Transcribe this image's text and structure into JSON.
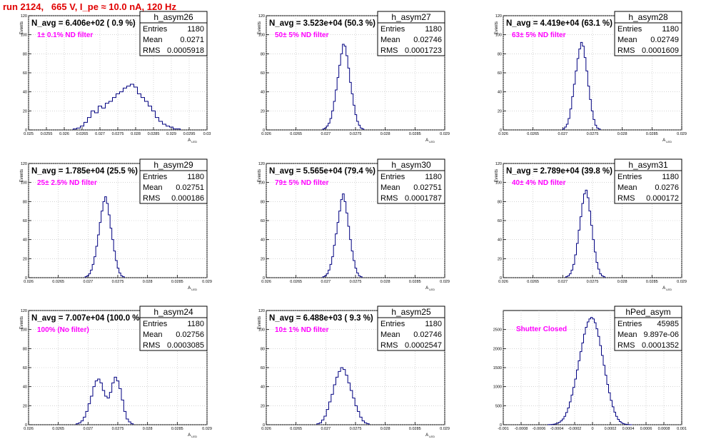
{
  "run_title": "run 2124,   665 V, I_pe ≈ 10.0 nA, 120 Hz",
  "stat_labels": {
    "entries": "Entries",
    "mean": "Mean",
    "rms": "RMS"
  },
  "chart_data": [
    {
      "type": "histogram",
      "name": "h_asym26",
      "navg": "N_avg = 6.406e+02 ( 0.9 %)",
      "filter": "1± 0.1% ND filter",
      "entries": "1180",
      "mean": "0.0271",
      "rms": "0.0005918",
      "xlabel": "A",
      "xlabel_sub": "LED",
      "ylabel": "Events",
      "xlim": [
        0.025,
        0.03
      ],
      "ylim": [
        0,
        120
      ],
      "xticks": [
        "0.025",
        "0.0255",
        "0.026",
        "0.0265",
        "0.027",
        "0.0275",
        "0.028",
        "0.0285",
        "0.029",
        "0.0295",
        "0.03"
      ],
      "yticks": [
        "0",
        "20",
        "40",
        "60",
        "80",
        "100",
        "120"
      ],
      "bins": {
        "start": 0.02625,
        "width": 0.0001,
        "counts": [
          1,
          2,
          4,
          8,
          13,
          20,
          18,
          25,
          23,
          28,
          30,
          34,
          38,
          40,
          44,
          46,
          48,
          45,
          38,
          34,
          30,
          25,
          20,
          13,
          9,
          6,
          4,
          3,
          1,
          1
        ]
      },
      "grid": true
    },
    {
      "type": "histogram",
      "name": "h_asym27",
      "navg": "N_avg = 3.523e+04 (50.3 %)",
      "filter": "50± 5% ND filter",
      "entries": "1180",
      "mean": "0.02746",
      "rms": "0.0001723",
      "xlabel": "A",
      "xlabel_sub": "LED",
      "ylabel": "Events",
      "xlim": [
        0.026,
        0.029
      ],
      "ylim": [
        0,
        120
      ],
      "xticks": [
        "0.026",
        "0.0265",
        "0.027",
        "0.0275",
        "0.028",
        "0.0285",
        "0.029"
      ],
      "yticks": [
        "0",
        "20",
        "40",
        "60",
        "80",
        "100",
        "120"
      ],
      "bins": {
        "start": 0.02695,
        "width": 3e-05,
        "counts": [
          1,
          2,
          4,
          7,
          12,
          20,
          30,
          42,
          55,
          68,
          80,
          90,
          88,
          78,
          65,
          50,
          38,
          26,
          16,
          9,
          5,
          2,
          1
        ]
      },
      "grid": true
    },
    {
      "type": "histogram",
      "name": "h_asym28",
      "navg": "N_avg = 4.419e+04 (63.1 %)",
      "filter": "63± 5% ND filter",
      "entries": "1180",
      "mean": "0.02749",
      "rms": "0.0001609",
      "xlabel": "A",
      "xlabel_sub": "LED",
      "ylabel": "Events",
      "xlim": [
        0.026,
        0.029
      ],
      "ylim": [
        0,
        120
      ],
      "xticks": [
        "0.026",
        "0.0265",
        "0.027",
        "0.0275",
        "0.028",
        "0.0285",
        "0.029"
      ],
      "yticks": [
        "0",
        "20",
        "40",
        "60",
        "80",
        "100",
        "120"
      ],
      "bins": {
        "start": 0.027,
        "width": 3e-05,
        "counts": [
          1,
          3,
          6,
          12,
          22,
          35,
          48,
          62,
          75,
          85,
          92,
          88,
          76,
          62,
          46,
          32,
          20,
          11,
          5,
          2,
          1
        ]
      },
      "grid": true
    },
    {
      "type": "histogram",
      "name": "h_asym29",
      "navg": "N_avg = 1.785e+04 (25.5 %)",
      "filter": "25± 2.5% ND filter",
      "entries": "1180",
      "mean": "0.02751",
      "rms": "0.000186",
      "xlabel": "A",
      "xlabel_sub": "LED",
      "ylabel": "Events",
      "xlim": [
        0.026,
        0.029
      ],
      "ylim": [
        0,
        120
      ],
      "xticks": [
        "0.026",
        "0.0265",
        "0.027",
        "0.0275",
        "0.028",
        "0.0285",
        "0.029"
      ],
      "yticks": [
        "0",
        "20",
        "40",
        "60",
        "80",
        "100",
        "120"
      ],
      "bins": {
        "start": 0.02695,
        "width": 3e-05,
        "counts": [
          1,
          2,
          4,
          8,
          14,
          22,
          33,
          45,
          58,
          70,
          80,
          85,
          78,
          66,
          52,
          40,
          28,
          18,
          10,
          5,
          2,
          1
        ]
      },
      "grid": true
    },
    {
      "type": "histogram",
      "name": "h_asym30",
      "navg": "N_avg = 5.565e+04 (79.4 %)",
      "filter": "79± 5% ND filter",
      "entries": "1180",
      "mean": "0.02751",
      "rms": "0.0001787",
      "xlabel": "A",
      "xlabel_sub": "LED",
      "ylabel": "Events",
      "xlim": [
        0.026,
        0.029
      ],
      "ylim": [
        0,
        120
      ],
      "xticks": [
        "0.026",
        "0.0265",
        "0.027",
        "0.0275",
        "0.028",
        "0.0285",
        "0.029"
      ],
      "yticks": [
        "0",
        "20",
        "40",
        "60",
        "80",
        "100",
        "120"
      ],
      "bins": {
        "start": 0.02695,
        "width": 3e-05,
        "counts": [
          1,
          2,
          4,
          8,
          14,
          22,
          34,
          46,
          58,
          70,
          82,
          88,
          80,
          68,
          54,
          40,
          28,
          18,
          10,
          5,
          2,
          1
        ]
      },
      "grid": true
    },
    {
      "type": "histogram",
      "name": "h_asym31",
      "navg": "N_avg = 2.789e+04 (39.8 %)",
      "filter": "40± 4% ND filter",
      "entries": "1180",
      "mean": "0.0276",
      "rms": "0.000172",
      "xlabel": "A",
      "xlabel_sub": "LED",
      "ylabel": "Events",
      "xlim": [
        0.026,
        0.029
      ],
      "ylim": [
        0,
        120
      ],
      "xticks": [
        "0.026",
        "0.0265",
        "0.027",
        "0.0275",
        "0.028",
        "0.0285",
        "0.029"
      ],
      "yticks": [
        "0",
        "20",
        "40",
        "60",
        "80",
        "100",
        "120"
      ],
      "bins": {
        "start": 0.02705,
        "width": 3e-05,
        "counts": [
          1,
          2,
          4,
          8,
          14,
          24,
          36,
          50,
          64,
          78,
          88,
          92,
          84,
          70,
          55,
          40,
          27,
          16,
          9,
          4,
          2,
          1
        ]
      },
      "grid": true
    },
    {
      "type": "histogram",
      "name": "h_asym24",
      "navg": "N_avg = 7.007e+04 (100.0 %)",
      "filter": "100% (No filter)",
      "entries": "1180",
      "mean": "0.02756",
      "rms": "0.0003085",
      "xlabel": "A",
      "xlabel_sub": "LED",
      "ylabel": "Events",
      "xlim": [
        0.026,
        0.029
      ],
      "ylim": [
        0,
        120
      ],
      "xticks": [
        "0.026",
        "0.0265",
        "0.027",
        "0.0275",
        "0.028",
        "0.0285",
        "0.029"
      ],
      "yticks": [
        "0",
        "20",
        "40",
        "60",
        "80",
        "100",
        "120"
      ],
      "bins": {
        "start": 0.0268,
        "width": 4e-05,
        "counts": [
          1,
          2,
          4,
          8,
          14,
          22,
          30,
          40,
          46,
          48,
          44,
          36,
          30,
          28,
          34,
          44,
          50,
          46,
          38,
          26,
          14,
          6,
          3,
          1
        ]
      },
      "grid": true
    },
    {
      "type": "histogram",
      "name": "h_asym25",
      "navg": "N_avg = 6.488e+03 ( 9.3 %)",
      "filter": "10± 1% ND filter",
      "entries": "1180",
      "mean": "0.02746",
      "rms": "0.0002547",
      "xlabel": "A",
      "xlabel_sub": "LED",
      "ylabel": "Events",
      "xlim": [
        0.026,
        0.029
      ],
      "ylim": [
        0,
        120
      ],
      "xticks": [
        "0.026",
        "0.0265",
        "0.027",
        "0.0275",
        "0.028",
        "0.0285",
        "0.029"
      ],
      "yticks": [
        "0",
        "20",
        "40",
        "60",
        "80",
        "100",
        "120"
      ],
      "bins": {
        "start": 0.02685,
        "width": 4e-05,
        "counts": [
          1,
          2,
          5,
          9,
          16,
          24,
          32,
          42,
          50,
          56,
          60,
          58,
          52,
          44,
          36,
          28,
          20,
          14,
          8,
          4,
          2,
          1
        ]
      },
      "grid": true
    },
    {
      "type": "histogram",
      "name": "hPed_asym",
      "navg": "",
      "filter": "Shutter Closed",
      "entries": "45985",
      "mean": "9.897e-06",
      "rms": "0.0001352",
      "xlabel": "",
      "xlabel_sub": "",
      "ylabel": "",
      "xlim": [
        -0.001,
        0.001
      ],
      "ylim": [
        0,
        3000
      ],
      "xticks": [
        "-0.001",
        "-0.0008",
        "-0.0006",
        "-0.0004",
        "-0.0002",
        "0",
        "0.0002",
        "0.0004",
        "0.0006",
        "0.0008",
        "0.001"
      ],
      "yticks": [
        "0",
        "500",
        "1000",
        "1500",
        "2000",
        "2500"
      ],
      "bins": {
        "start": -0.0005,
        "width": 2e-05,
        "counts": [
          2,
          4,
          8,
          14,
          24,
          40,
          64,
          100,
          150,
          220,
          320,
          440,
          600,
          780,
          980,
          1200,
          1440,
          1680,
          1920,
          2150,
          2380,
          2560,
          2700,
          2780,
          2820,
          2780,
          2680,
          2520,
          2320,
          2080,
          1820,
          1560,
          1300,
          1060,
          840,
          640,
          470,
          330,
          220,
          140,
          84,
          48,
          26,
          14,
          7,
          3,
          1
        ]
      },
      "grid": true
    }
  ]
}
